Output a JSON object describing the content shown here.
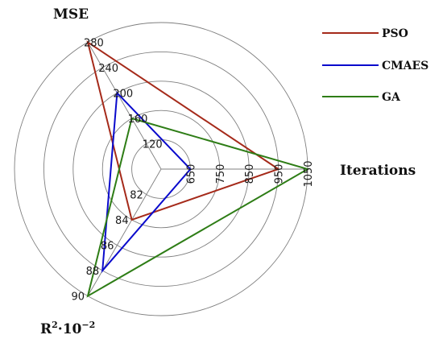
{
  "chart_data": {
    "type": "radar",
    "axes": [
      {
        "label": "MSE",
        "ticks": [
          "120",
          "160",
          "200",
          "240",
          "280"
        ],
        "range": [
          80,
          280
        ]
      },
      {
        "label": "Iterations",
        "ticks": [
          "650",
          "750",
          "850",
          "950",
          "1050"
        ],
        "range": [
          550,
          1050
        ]
      },
      {
        "label_base": "R",
        "label_sup1": "2",
        "label_mid": "·10",
        "label_sup2": "−2",
        "ticks": [
          "82",
          "84",
          "86",
          "88",
          "90"
        ],
        "range": [
          80,
          90
        ]
      }
    ],
    "series": [
      {
        "name": "PSO",
        "color": "#a52a1a",
        "values": {
          "MSE": 280,
          "Iterations": 950,
          "R2": 84
        }
      },
      {
        "name": "CMAES",
        "color": "#0a0acc",
        "values": {
          "MSE": 200,
          "Iterations": 650,
          "R2": 88
        }
      },
      {
        "name": "GA",
        "color": "#2e7d16",
        "values": {
          "MSE": 160,
          "Iterations": 1050,
          "R2": 90
        }
      }
    ],
    "grid": true,
    "legend_position": "top-right"
  }
}
